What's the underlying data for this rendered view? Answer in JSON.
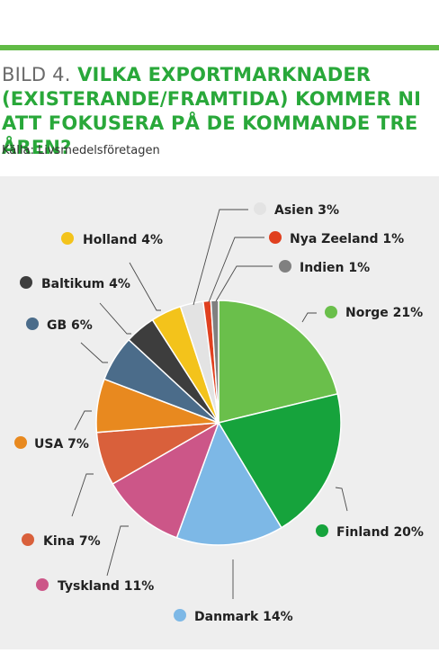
{
  "header": {
    "prefix": "BILD 4.",
    "title": "VILKA EXPORTMARKNADER (EXISTERANDE/FRAMTIDA) KOMMER NI ATT FOKUSERA PÅ DE KOMMANDE TRE ÅREN?",
    "source": "Källa: Livsmedelsföretagen"
  },
  "colors": {
    "accent": "#61bb46",
    "title": "#29a83a",
    "panel": "#eeeeee"
  },
  "chart_data": {
    "type": "pie",
    "title": "VILKA EXPORTMARKNADER (EXISTERANDE/FRAMTIDA) KOMMER NI ATT FOKUSERA PÅ DE KOMMANDE TRE ÅREN?",
    "slices": [
      {
        "label": "Norge",
        "value": 21,
        "display": "Norge 21%",
        "color": "#6abf4b"
      },
      {
        "label": "Finland",
        "value": 20,
        "display": "Finland 20%",
        "color": "#16a33c"
      },
      {
        "label": "Danmark",
        "value": 14,
        "display": "Danmark 14%",
        "color": "#7db8e6"
      },
      {
        "label": "Tyskland",
        "value": 11,
        "display": "Tyskland 11%",
        "color": "#cc5688"
      },
      {
        "label": "Kina",
        "value": 7,
        "display": "Kina 7%",
        "color": "#d9603b"
      },
      {
        "label": "USA",
        "value": 7,
        "display": "USA 7%",
        "color": "#e8891f"
      },
      {
        "label": "GB",
        "value": 6,
        "display": "GB 6%",
        "color": "#4b6c8a"
      },
      {
        "label": "Baltikum",
        "value": 4,
        "display": "Baltikum 4%",
        "color": "#3d3d3d"
      },
      {
        "label": "Holland",
        "value": 4,
        "display": "Holland 4%",
        "color": "#f3c31b"
      },
      {
        "label": "Asien",
        "value": 3,
        "display": "Asien 3%",
        "color": "#e3e3e3"
      },
      {
        "label": "Nya Zeeland",
        "value": 1,
        "display": "Nya Zeeland 1%",
        "color": "#e0401f"
      },
      {
        "label": "Indien",
        "value": 1,
        "display": "Indien 1%",
        "color": "#808080"
      }
    ]
  }
}
